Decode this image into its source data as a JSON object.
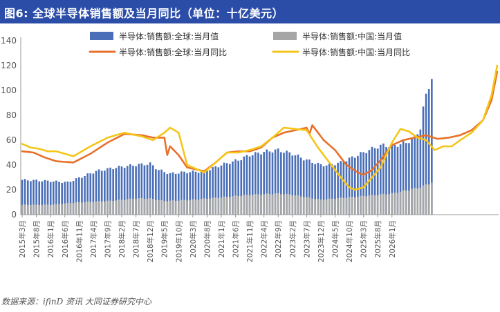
{
  "header": {
    "title": "图6: 全球半导体销售额及当月同比（单位：十亿美元）"
  },
  "footer": {
    "source": "数据来源：ifinD 资讯  大同证券研究中心"
  },
  "chart_data": {
    "type": "bar",
    "title": "图6: 全球半导体销售额及当月同比（单位：十亿美元）",
    "ylim": [
      0,
      140
    ],
    "yticks": [
      0,
      20,
      40,
      60,
      80,
      100,
      120,
      140
    ],
    "grid": false,
    "legend_position": "top",
    "start_month": "2015-03",
    "x_tick_labels": [
      "2015年3月",
      "2015年8月",
      "2016年1月",
      "2016年6月",
      "2016年11月",
      "2017年4月",
      "2017年9月",
      "2018年2月",
      "2018年7月",
      "2018年12月",
      "2019年5月",
      "2019年10月",
      "2020年3月",
      "2020年8月",
      "2021年1月",
      "2021年6月",
      "2021年11月",
      "2022年4月",
      "2022年9月",
      "2023年2月",
      "2023年7月",
      "2023年12月",
      "2024年5月",
      "2024年10月",
      "2025年3月",
      "2025年8月",
      "2026年1月"
    ],
    "series": [
      {
        "name": "半导体:销售额:全球:当月值",
        "kind": "bar",
        "color": "#4a6fb8",
        "anchors": [
          [
            0,
            28
          ],
          [
            10,
            27
          ],
          [
            16,
            26
          ],
          [
            26,
            35
          ],
          [
            33,
            38
          ],
          [
            40,
            40
          ],
          [
            45,
            41
          ],
          [
            48,
            36
          ],
          [
            52,
            33
          ],
          [
            56,
            34
          ],
          [
            64,
            35
          ],
          [
            70,
            40
          ],
          [
            76,
            44
          ],
          [
            80,
            48
          ],
          [
            86,
            51
          ],
          [
            90,
            52
          ],
          [
            95,
            49
          ],
          [
            100,
            44
          ],
          [
            105,
            40
          ],
          [
            108,
            40
          ],
          [
            112,
            42
          ],
          [
            118,
            48
          ],
          [
            124,
            54
          ],
          [
            127,
            56
          ],
          [
            130,
            55
          ],
          [
            135,
            58
          ],
          [
            138,
            62
          ],
          [
            140,
            70
          ],
          [
            141,
            85
          ],
          [
            142,
            96
          ],
          [
            143,
            104
          ],
          [
            144,
            110
          ]
        ]
      },
      {
        "name": "半导体:销售额:中国:当月值",
        "kind": "bar",
        "color": "#a6a6a6",
        "anchors": [
          [
            0,
            8
          ],
          [
            10,
            8
          ],
          [
            20,
            10
          ],
          [
            30,
            11
          ],
          [
            40,
            13
          ],
          [
            45,
            13
          ],
          [
            50,
            11
          ],
          [
            60,
            12
          ],
          [
            70,
            14
          ],
          [
            80,
            16
          ],
          [
            90,
            17
          ],
          [
            95,
            16
          ],
          [
            100,
            14
          ],
          [
            105,
            12
          ],
          [
            110,
            13
          ],
          [
            120,
            15
          ],
          [
            130,
            17
          ],
          [
            140,
            22
          ],
          [
            144,
            26
          ]
        ]
      },
      {
        "name": "半导体:销售额:全球:当月同比",
        "kind": "line",
        "color": "#e8702a",
        "anchors": [
          [
            0,
            51
          ],
          [
            4,
            50
          ],
          [
            8,
            46
          ],
          [
            12,
            43
          ],
          [
            18,
            42
          ],
          [
            24,
            49
          ],
          [
            30,
            58
          ],
          [
            36,
            65
          ],
          [
            42,
            64
          ],
          [
            46,
            62
          ],
          [
            50,
            62
          ],
          [
            51,
            48
          ],
          [
            52,
            55
          ],
          [
            55,
            48
          ],
          [
            58,
            38
          ],
          [
            62,
            36
          ],
          [
            64,
            35
          ],
          [
            68,
            42
          ],
          [
            72,
            50
          ],
          [
            76,
            51
          ],
          [
            80,
            51
          ],
          [
            84,
            54
          ],
          [
            88,
            62
          ],
          [
            92,
            66
          ],
          [
            96,
            68
          ],
          [
            100,
            70
          ],
          [
            101,
            65
          ],
          [
            102,
            72
          ],
          [
            106,
            60
          ],
          [
            110,
            52
          ],
          [
            114,
            40
          ],
          [
            118,
            34
          ],
          [
            120,
            32
          ],
          [
            123,
            36
          ],
          [
            126,
            44
          ],
          [
            130,
            56
          ],
          [
            134,
            60
          ],
          [
            138,
            62
          ],
          [
            142,
            64
          ],
          [
            146,
            61
          ],
          [
            150,
            62
          ],
          [
            154,
            64
          ],
          [
            158,
            68
          ],
          [
            162,
            76
          ],
          [
            165,
            92
          ],
          [
            167,
            115
          ]
        ]
      },
      {
        "name": "半导体:销售额:中国:当月同比",
        "kind": "line",
        "color": "#f5c518",
        "anchors": [
          [
            0,
            57
          ],
          [
            3,
            54
          ],
          [
            6,
            53
          ],
          [
            9,
            51
          ],
          [
            12,
            51
          ],
          [
            18,
            47
          ],
          [
            24,
            55
          ],
          [
            30,
            62
          ],
          [
            36,
            66
          ],
          [
            42,
            63
          ],
          [
            46,
            60
          ],
          [
            50,
            66
          ],
          [
            52,
            70
          ],
          [
            55,
            66
          ],
          [
            58,
            40
          ],
          [
            62,
            36
          ],
          [
            64,
            34
          ],
          [
            68,
            42
          ],
          [
            72,
            50
          ],
          [
            76,
            50
          ],
          [
            80,
            52
          ],
          [
            84,
            55
          ],
          [
            88,
            62
          ],
          [
            92,
            70
          ],
          [
            96,
            69
          ],
          [
            100,
            68
          ],
          [
            104,
            54
          ],
          [
            108,
            42
          ],
          [
            112,
            30
          ],
          [
            115,
            22
          ],
          [
            117,
            20
          ],
          [
            120,
            22
          ],
          [
            123,
            30
          ],
          [
            126,
            38
          ],
          [
            130,
            58
          ],
          [
            133,
            69
          ],
          [
            136,
            67
          ],
          [
            139,
            62
          ],
          [
            142,
            60
          ],
          [
            145,
            52
          ],
          [
            148,
            55
          ],
          [
            151,
            55
          ],
          [
            154,
            60
          ],
          [
            158,
            66
          ],
          [
            162,
            76
          ],
          [
            165,
            96
          ],
          [
            167,
            120
          ]
        ]
      }
    ]
  }
}
